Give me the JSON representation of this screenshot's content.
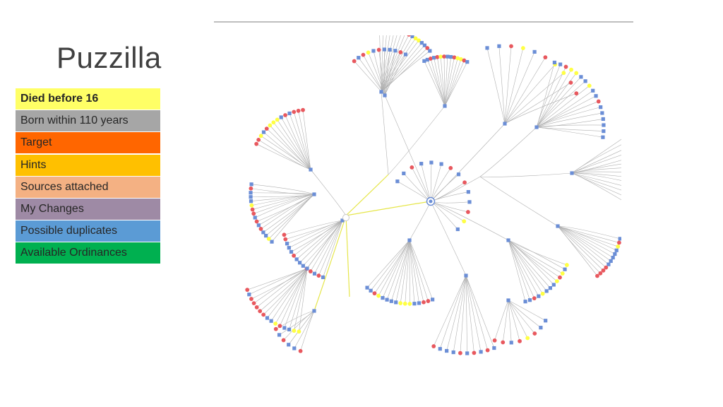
{
  "slide": {
    "title": "Puzzilla"
  },
  "legend": [
    {
      "label": "Died before 16",
      "color": "#ffff66",
      "bold": true
    },
    {
      "label": "Born within 110 years",
      "color": "#a6a6a6"
    },
    {
      "label": "Target",
      "color": "#ff6600"
    },
    {
      "label": "Hints",
      "color": "#ffc000"
    },
    {
      "label": "Sources attached",
      "color": "#f4b183"
    },
    {
      "label": "My Changes",
      "color": "#9e8aa5"
    },
    {
      "label": "Possible duplicates",
      "color": "#5b9bd5"
    },
    {
      "label": "Available Ordinances",
      "color": "#00b050"
    }
  ],
  "diagram": {
    "node_colors": {
      "male": "#6b8ed6",
      "female": "#e8585e",
      "died_young": "#ffff44",
      "link": "#b0b0b0",
      "highlight_link": "#e6e64a"
    }
  }
}
